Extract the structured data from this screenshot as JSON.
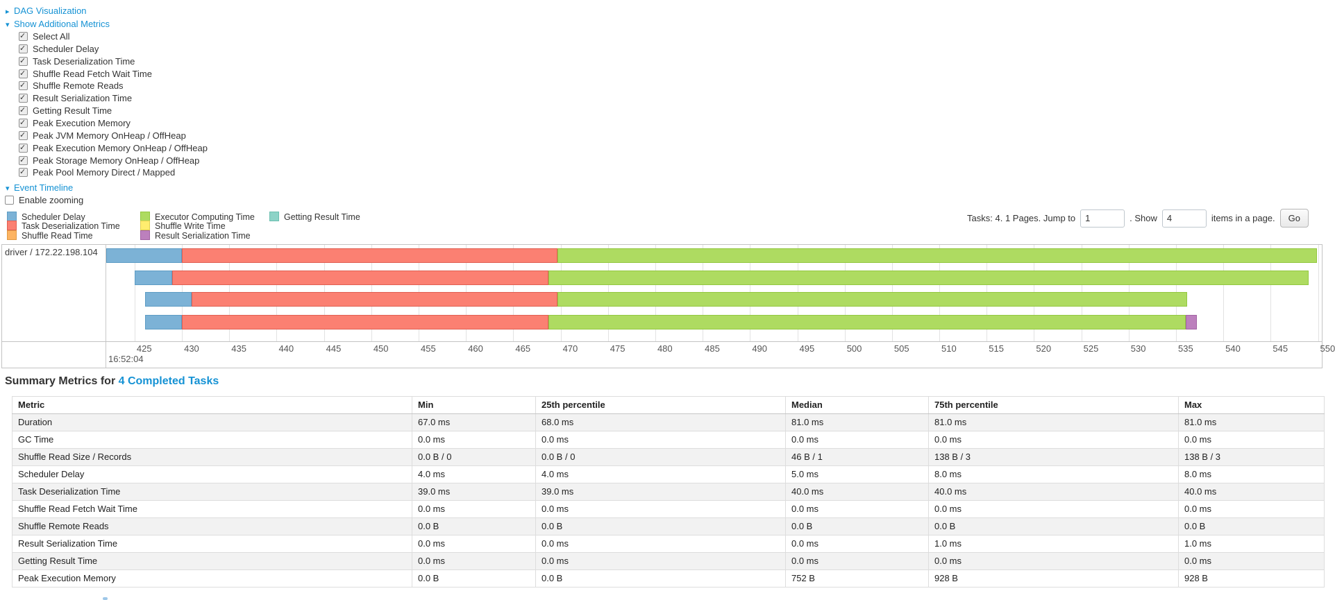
{
  "controls": {
    "dag": {
      "arrow": "▸",
      "label": "DAG Visualization"
    },
    "show_metrics": {
      "arrow": "▾",
      "label": "Show Additional Metrics"
    },
    "metrics": [
      {
        "label": "Select All",
        "checked": true
      },
      {
        "label": "Scheduler Delay",
        "checked": true
      },
      {
        "label": "Task Deserialization Time",
        "checked": true
      },
      {
        "label": "Shuffle Read Fetch Wait Time",
        "checked": true
      },
      {
        "label": "Shuffle Remote Reads",
        "checked": true
      },
      {
        "label": "Result Serialization Time",
        "checked": true
      },
      {
        "label": "Getting Result Time",
        "checked": true
      },
      {
        "label": "Peak Execution Memory",
        "checked": true
      },
      {
        "label": "Peak JVM Memory OnHeap / OffHeap",
        "checked": true
      },
      {
        "label": "Peak Execution Memory OnHeap / OffHeap",
        "checked": true
      },
      {
        "label": "Peak Storage Memory OnHeap / OffHeap",
        "checked": true
      },
      {
        "label": "Peak Pool Memory Direct / Mapped",
        "checked": true
      }
    ],
    "event_timeline": {
      "arrow": "▾",
      "label": "Event Timeline"
    },
    "enable_zooming": {
      "label": "Enable zooming",
      "checked": false
    }
  },
  "legend": {
    "columns": [
      [
        {
          "label": "Scheduler Delay",
          "key": "scheduler-delay"
        },
        {
          "label": "Task Deserialization Time",
          "key": "task-deserialization"
        },
        {
          "label": "Shuffle Read Time",
          "key": "shuffle-read"
        }
      ],
      [
        {
          "label": "Executor Computing Time",
          "key": "executor-computing"
        },
        {
          "label": "Shuffle Write Time",
          "key": "shuffle-write"
        },
        {
          "label": "Result Serialization Time",
          "key": "result-serialization"
        }
      ],
      [
        {
          "label": "Getting Result Time",
          "key": "getting-result"
        }
      ]
    ]
  },
  "pagination": {
    "summary_text": "Tasks: 4. 1 Pages. Jump to",
    "jump_value": "1",
    "show_text": ". Show",
    "page_size_value": "4",
    "items_text": "items in a page.",
    "go_label": "Go"
  },
  "chart_data": {
    "type": "timeline",
    "title": "Event Timeline",
    "group_label": "driver / 172.22.198.104",
    "x_axis": {
      "unit": "milliseconds within 16:52:04",
      "visible_min": 422,
      "visible_max": 550.4,
      "tick_start": 425,
      "tick_end": 550,
      "tick_step": 5,
      "major_time_label": "16:52:04"
    },
    "colors": {
      "scheduler-delay": "#7CB2D6",
      "task-deserialization": "#FB8072",
      "shuffle-read": "#FDB462",
      "executor-computing": "#AEDB61",
      "shuffle-write": "#FFED6F",
      "result-serialization": "#BC80BD",
      "getting-result": "#8DD3C7"
    },
    "tasks": [
      {
        "segments": [
          {
            "metric": "scheduler-delay",
            "from": 422,
            "to": 430
          },
          {
            "metric": "task-deserialization",
            "from": 430,
            "to": 469.7
          },
          {
            "metric": "executor-computing",
            "from": 469.7,
            "to": 549.9
          }
        ]
      },
      {
        "segments": [
          {
            "metric": "scheduler-delay",
            "from": 425,
            "to": 429
          },
          {
            "metric": "task-deserialization",
            "from": 429,
            "to": 468.7
          },
          {
            "metric": "executor-computing",
            "from": 468.7,
            "to": 549
          }
        ]
      },
      {
        "segments": [
          {
            "metric": "scheduler-delay",
            "from": 426.1,
            "to": 431
          },
          {
            "metric": "task-deserialization",
            "from": 431,
            "to": 469.7
          },
          {
            "metric": "executor-computing",
            "from": 469.7,
            "to": 536.2
          }
        ]
      },
      {
        "segments": [
          {
            "metric": "scheduler-delay",
            "from": 426.1,
            "to": 430
          },
          {
            "metric": "task-deserialization",
            "from": 430,
            "to": 468.7
          },
          {
            "metric": "executor-computing",
            "from": 468.7,
            "to": 536
          },
          {
            "metric": "result-serialization",
            "from": 536,
            "to": 537.2
          }
        ]
      }
    ]
  },
  "summary": {
    "title_prefix": "Summary Metrics for ",
    "title_link": "4 Completed Tasks",
    "headers": [
      "Metric",
      "Min",
      "25th percentile",
      "Median",
      "75th percentile",
      "Max"
    ],
    "rows": [
      {
        "metric": "Duration",
        "values": [
          "67.0 ms",
          "68.0 ms",
          "81.0 ms",
          "81.0 ms",
          "81.0 ms"
        ]
      },
      {
        "metric": "GC Time",
        "values": [
          "0.0 ms",
          "0.0 ms",
          "0.0 ms",
          "0.0 ms",
          "0.0 ms"
        ]
      },
      {
        "metric": "Shuffle Read Size / Records",
        "values": [
          "0.0 B / 0",
          "0.0 B / 0",
          "46 B / 1",
          "138 B / 3",
          "138 B / 3"
        ]
      },
      {
        "metric": "Scheduler Delay",
        "values": [
          "4.0 ms",
          "4.0 ms",
          "5.0 ms",
          "8.0 ms",
          "8.0 ms"
        ]
      },
      {
        "metric": "Task Deserialization Time",
        "values": [
          "39.0 ms",
          "39.0 ms",
          "40.0 ms",
          "40.0 ms",
          "40.0 ms"
        ]
      },
      {
        "metric": "Shuffle Read Fetch Wait Time",
        "values": [
          "0.0 ms",
          "0.0 ms",
          "0.0 ms",
          "0.0 ms",
          "0.0 ms"
        ]
      },
      {
        "metric": "Shuffle Remote Reads",
        "values": [
          "0.0 B",
          "0.0 B",
          "0.0 B",
          "0.0 B",
          "0.0 B"
        ]
      },
      {
        "metric": "Result Serialization Time",
        "values": [
          "0.0 ms",
          "0.0 ms",
          "0.0 ms",
          "1.0 ms",
          "1.0 ms"
        ]
      },
      {
        "metric": "Getting Result Time",
        "values": [
          "0.0 ms",
          "0.0 ms",
          "0.0 ms",
          "0.0 ms",
          "0.0 ms"
        ]
      },
      {
        "metric": "Peak Execution Memory",
        "values": [
          "0.0 B",
          "0.0 B",
          "752 B",
          "928 B",
          "928 B"
        ]
      }
    ]
  }
}
